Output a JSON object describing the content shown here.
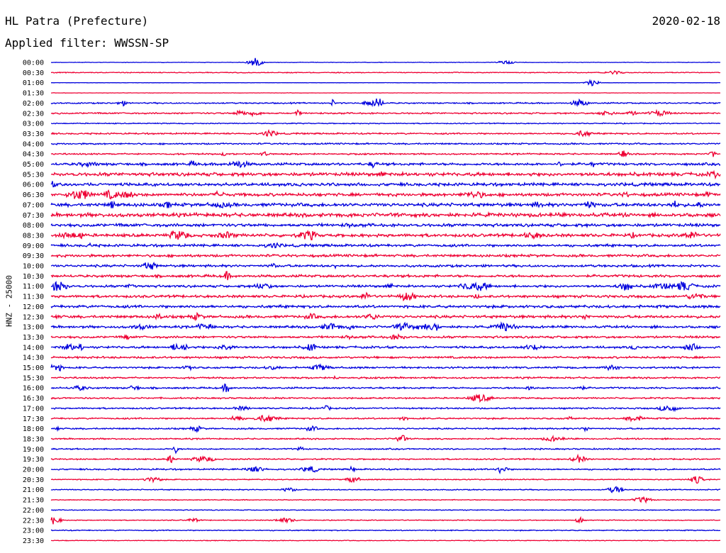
{
  "header": {
    "station": "HL Patra (Prefecture)",
    "filter": "Applied filter: WWSSN-SP",
    "date": "2020-02-18"
  },
  "chart_data": {
    "type": "line",
    "title": "HL Patra (Prefecture)",
    "subtitle": "Applied filter: WWSSN-SP",
    "ylabel": "HNZ - 25000",
    "date": "2020-02-18",
    "row_labels": [
      "00:00",
      "00:30",
      "01:00",
      "01:30",
      "02:00",
      "02:30",
      "03:00",
      "03:30",
      "04:00",
      "04:30",
      "05:00",
      "05:30",
      "06:00",
      "06:30",
      "07:00",
      "07:30",
      "08:00",
      "08:30",
      "09:00",
      "09:30",
      "10:00",
      "10:30",
      "11:00",
      "11:30",
      "12:00",
      "12:30",
      "13:00",
      "13:30",
      "14:00",
      "14:30",
      "15:00",
      "15:30",
      "16:00",
      "16:30",
      "17:00",
      "17:30",
      "18:00",
      "18:30",
      "19:00",
      "19:30",
      "20:00",
      "20:30",
      "21:00",
      "21:30",
      "22:00",
      "22:30",
      "23:00",
      "23:30"
    ],
    "trace_colors": [
      "#0000dd",
      "#ee0033"
    ],
    "noise_level": [
      0.3,
      0.5,
      0.15,
      0.2,
      0.8,
      0.9,
      0.6,
      0.9,
      0.9,
      0.9,
      1.5,
      2.0,
      1.8,
      1.8,
      2.0,
      2.2,
      1.8,
      1.8,
      1.5,
      1.5,
      1.4,
      1.5,
      1.4,
      1.5,
      1.6,
      1.6,
      1.4,
      1.3,
      1.3,
      1.2,
      1.1,
      1.0,
      1.0,
      0.9,
      0.9,
      0.9,
      0.9,
      0.8,
      0.8,
      0.8,
      0.9,
      0.6,
      0.6,
      0.5,
      0.5,
      0.5,
      0.6,
      0.4
    ]
  }
}
